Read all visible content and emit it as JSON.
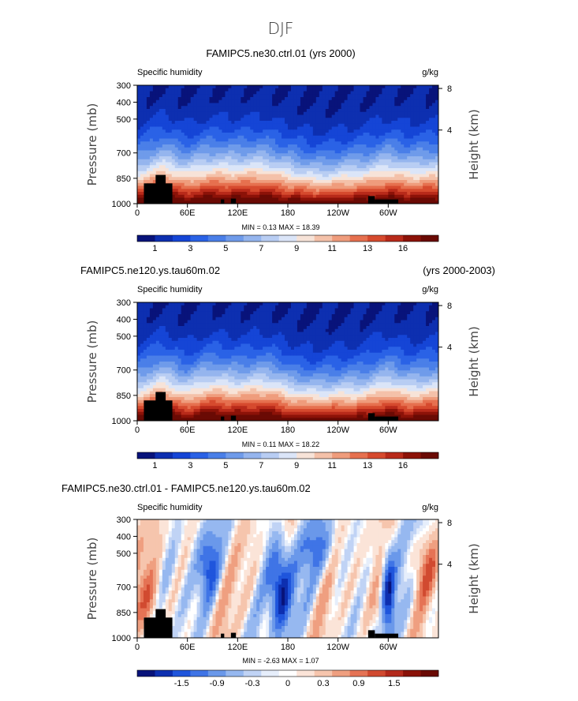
{
  "figure_title": "DJF",
  "colors": {
    "warm_scale": [
      "#08137a",
      "#0d2fb0",
      "#1545d6",
      "#2a62e6",
      "#4a7fe8",
      "#6f9bea",
      "#95b5ee",
      "#b8cdf3",
      "#dbe5f8",
      "#f7e3d8",
      "#f4c1a9",
      "#ef9c7c",
      "#e6704f",
      "#d64a2e",
      "#b82a1a",
      "#8c1208",
      "#6a0a04"
    ],
    "diff_scale": [
      "#08137a",
      "#0d2fb0",
      "#1f55dc",
      "#3f74e6",
      "#6a98ea",
      "#96b8f0",
      "#c0d3f5",
      "#e6eefb",
      "#ffffff",
      "#fbe4d8",
      "#f6c5ad",
      "#ef9f80",
      "#e57355",
      "#d14a30",
      "#b32a1c",
      "#8a1208",
      "#6a0a04"
    ],
    "land": "#000000"
  },
  "chart_data": [
    {
      "type": "heatmap",
      "title": "FAMIPC5.ne30.ctrl.01 (yrs 2000)",
      "title_right": "",
      "variable": "Specific humidity",
      "units": "g/kg",
      "ylabel": "Pressure (mb)",
      "y2label": "Height (km)",
      "yticks": [
        "300",
        "400",
        "500",
        "700",
        "850",
        "1000"
      ],
      "ytick_values": [
        300,
        400,
        500,
        700,
        850,
        1000
      ],
      "y2ticks": [
        "8",
        "4"
      ],
      "y2tick_values": [
        8,
        4
      ],
      "xticks": [
        "0",
        "60E",
        "120E",
        "180",
        "120W",
        "60W"
      ],
      "xtick_values": [
        0,
        60,
        120,
        180,
        240,
        300
      ],
      "xlim": [
        0,
        360
      ],
      "ylim": [
        1000,
        300
      ],
      "stats": "MIN =    0.13   MAX =   18.39",
      "min": 0.13,
      "max": 18.39,
      "colorbar_labels": [
        "1",
        "3",
        "5",
        "7",
        "9",
        "11",
        "13",
        "16"
      ],
      "colorbar_levels": [
        0,
        1,
        2,
        3,
        4,
        5,
        6,
        7,
        8,
        9,
        10,
        11,
        12,
        13,
        14,
        15,
        16
      ],
      "mode": "mean"
    },
    {
      "type": "heatmap",
      "title": "FAMIPC5.ne120.ys.tau60m.02",
      "title_right": "(yrs 2000-2003)",
      "variable": "Specific humidity",
      "units": "g/kg",
      "ylabel": "Pressure (mb)",
      "y2label": "Height (km)",
      "yticks": [
        "300",
        "400",
        "500",
        "700",
        "850",
        "1000"
      ],
      "ytick_values": [
        300,
        400,
        500,
        700,
        850,
        1000
      ],
      "y2ticks": [
        "8",
        "4"
      ],
      "y2tick_values": [
        8,
        4
      ],
      "xticks": [
        "0",
        "60E",
        "120E",
        "180",
        "120W",
        "60W"
      ],
      "xtick_values": [
        0,
        60,
        120,
        180,
        240,
        300
      ],
      "xlim": [
        0,
        360
      ],
      "ylim": [
        1000,
        300
      ],
      "stats": "MIN =    0.11   MAX =   18.22",
      "min": 0.11,
      "max": 18.22,
      "colorbar_labels": [
        "1",
        "3",
        "5",
        "7",
        "9",
        "11",
        "13",
        "16"
      ],
      "colorbar_levels": [
        0,
        1,
        2,
        3,
        4,
        5,
        6,
        7,
        8,
        9,
        10,
        11,
        12,
        13,
        14,
        15,
        16
      ],
      "mode": "mean"
    },
    {
      "type": "heatmap",
      "title": "FAMIPC5.ne30.ctrl.01 - FAMIPC5.ne120.ys.tau60m.02",
      "title_right": "",
      "variable": "Specific humidity",
      "units": "g/kg",
      "ylabel": "Pressure (mb)",
      "y2label": "Height (km)",
      "yticks": [
        "300",
        "400",
        "500",
        "700",
        "850",
        "1000"
      ],
      "ytick_values": [
        300,
        400,
        500,
        700,
        850,
        1000
      ],
      "y2ticks": [
        "8",
        "4"
      ],
      "y2tick_values": [
        8,
        4
      ],
      "xticks": [
        "0",
        "60E",
        "120E",
        "180",
        "120W",
        "60W"
      ],
      "xtick_values": [
        0,
        60,
        120,
        180,
        240,
        300
      ],
      "xlim": [
        0,
        360
      ],
      "ylim": [
        1000,
        300
      ],
      "stats": "MIN =   -2.63   MAX =    1.07",
      "min": -2.63,
      "max": 1.07,
      "colorbar_labels": [
        "-1.5",
        "-0.9",
        "-0.3",
        "0",
        "0.3",
        "0.9",
        "1.5"
      ],
      "colorbar_levels": [
        -2.1,
        -1.8,
        -1.5,
        -1.2,
        -0.9,
        -0.6,
        -0.3,
        -0.1,
        0,
        0.1,
        0.3,
        0.6,
        0.9,
        1.2,
        1.5,
        1.8,
        2.1
      ],
      "mode": "diff"
    }
  ]
}
